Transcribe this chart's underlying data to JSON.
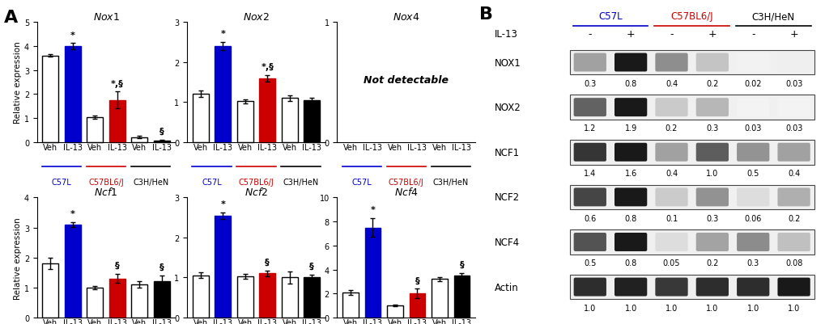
{
  "panels": {
    "Nox1": {
      "title": "Nox1",
      "ylim": [
        0,
        5
      ],
      "yticks": [
        0,
        1,
        2,
        3,
        4,
        5
      ],
      "bars": [
        3.6,
        4.0,
        1.05,
        1.75,
        0.2,
        0.08
      ],
      "errors": [
        0.05,
        0.12,
        0.07,
        0.35,
        0.05,
        0.03
      ],
      "annotations": [
        "",
        "*",
        "",
        "*,§",
        "",
        "§"
      ],
      "show_ylabel": true
    },
    "Nox2": {
      "title": "Nox2",
      "ylim": [
        0,
        3
      ],
      "yticks": [
        0,
        1,
        2,
        3
      ],
      "bars": [
        1.2,
        2.4,
        1.02,
        1.6,
        1.1,
        1.05
      ],
      "errors": [
        0.08,
        0.1,
        0.05,
        0.08,
        0.07,
        0.05
      ],
      "annotations": [
        "",
        "*",
        "",
        "*,§",
        "",
        ""
      ],
      "show_ylabel": false
    },
    "Nox4": {
      "title": "Nox4",
      "ylim": [
        0,
        1
      ],
      "yticks": [
        0,
        1
      ],
      "bars": [
        0,
        0,
        0,
        0,
        0,
        0
      ],
      "errors": [
        0,
        0,
        0,
        0,
        0,
        0
      ],
      "annotations": [
        "",
        "",
        "",
        "",
        "",
        ""
      ],
      "not_detectable": true,
      "show_ylabel": false
    },
    "Ncf1": {
      "title": "Ncf1",
      "ylim": [
        0,
        4
      ],
      "yticks": [
        0,
        1,
        2,
        3,
        4
      ],
      "bars": [
        1.8,
        3.1,
        1.0,
        1.3,
        1.1,
        1.2
      ],
      "errors": [
        0.18,
        0.08,
        0.05,
        0.15,
        0.1,
        0.2
      ],
      "annotations": [
        "",
        "*",
        "",
        "§",
        "",
        "§"
      ],
      "show_ylabel": true
    },
    "Ncf2": {
      "title": "Ncf2",
      "ylim": [
        0,
        3
      ],
      "yticks": [
        0,
        1,
        2,
        3
      ],
      "bars": [
        1.05,
        2.55,
        1.02,
        1.1,
        1.0,
        1.0
      ],
      "errors": [
        0.07,
        0.08,
        0.06,
        0.08,
        0.15,
        0.07
      ],
      "annotations": [
        "",
        "*",
        "",
        "§",
        "",
        "§"
      ],
      "show_ylabel": false
    },
    "Ncf4": {
      "title": "Ncf4",
      "ylim": [
        0,
        10
      ],
      "yticks": [
        0,
        2,
        4,
        6,
        8,
        10
      ],
      "bars": [
        2.1,
        7.5,
        1.0,
        2.0,
        3.2,
        3.5
      ],
      "errors": [
        0.2,
        0.8,
        0.08,
        0.4,
        0.18,
        0.2
      ],
      "annotations": [
        "",
        "*",
        "",
        "§",
        "",
        "§"
      ],
      "show_ylabel": false
    }
  },
  "panel_order_top": [
    "Nox1",
    "Nox2",
    "Nox4"
  ],
  "panel_order_bot": [
    "Ncf1",
    "Ncf2",
    "Ncf4"
  ],
  "bar_colors": [
    "#ffffff",
    "#0000cc",
    "#ffffff",
    "#cc0000",
    "#ffffff",
    "#000000"
  ],
  "edge_colors": [
    "#000000",
    "#0000cc",
    "#000000",
    "#cc0000",
    "#000000",
    "#000000"
  ],
  "x_labels": [
    "Veh",
    "IL-13",
    "Veh",
    "IL-13",
    "Veh",
    "IL-13"
  ],
  "strain_labels": [
    "C57L",
    "C57BL6/J",
    "C3H/HeN"
  ],
  "strain_colors": [
    "#0000cc",
    "#cc0000",
    "#000000"
  ],
  "western_blot": {
    "proteins": [
      "NOX1",
      "NOX2",
      "NCF1",
      "NCF2",
      "NCF4",
      "Actin"
    ],
    "strain_headers": [
      "C57L",
      "C57BL6/J",
      "C3H/HeN"
    ],
    "strain_header_colors": [
      "#0000cc",
      "#cc0000",
      "#000000"
    ],
    "il13_row": [
      "-",
      "+",
      "-",
      "+",
      "-",
      "+"
    ],
    "values": {
      "NOX1": [
        "0.3",
        "0.8",
        "0.4",
        "0.2",
        "0.02",
        "0.03"
      ],
      "NOX2": [
        "1.2",
        "1.9",
        "0.2",
        "0.3",
        "0.03",
        "0.03"
      ],
      "NCF1": [
        "1.4",
        "1.6",
        "0.4",
        "1.0",
        "0.5",
        "0.4"
      ],
      "NCF2": [
        "0.6",
        "0.8",
        "0.1",
        "0.3",
        "0.06",
        "0.2"
      ],
      "NCF4": [
        "0.5",
        "0.8",
        "0.05",
        "0.2",
        "0.3",
        "0.08"
      ],
      "Actin": [
        "1.0",
        "1.0",
        "1.0",
        "1.0",
        "1.0",
        "1.0"
      ]
    },
    "band_intensities": {
      "NOX1": [
        0.35,
        0.85,
        0.42,
        0.22,
        0.05,
        0.06
      ],
      "NOX2": [
        0.65,
        0.95,
        0.22,
        0.3,
        0.05,
        0.05
      ],
      "NCF1": [
        0.75,
        0.85,
        0.35,
        0.6,
        0.4,
        0.35
      ],
      "NCF2": [
        0.65,
        0.8,
        0.18,
        0.38,
        0.12,
        0.28
      ],
      "NCF4": [
        0.6,
        0.8,
        0.12,
        0.32,
        0.4,
        0.22
      ],
      "Actin": [
        0.55,
        0.58,
        0.52,
        0.55,
        0.55,
        0.6
      ]
    }
  },
  "figure_width": 10.2,
  "figure_height": 4.02,
  "dpi": 100
}
